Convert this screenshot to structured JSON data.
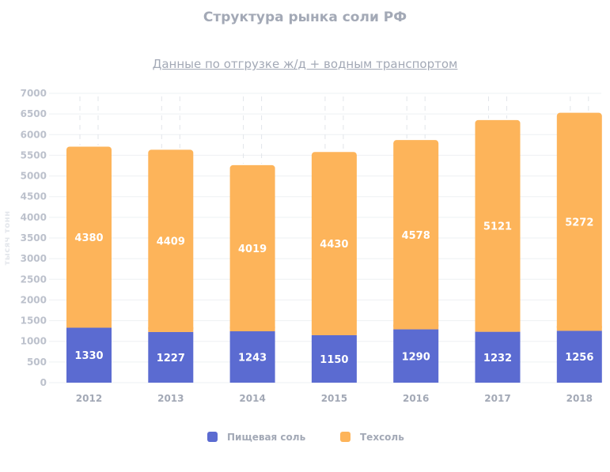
{
  "chart_data": {
    "type": "bar",
    "stacked": true,
    "title": "Структура рынка соли РФ",
    "subtitle": "Данные по отгрузке  ж/д + водным транспортом",
    "ylabel": "тысяч тонн",
    "xlabel": "",
    "categories": [
      "2012",
      "2013",
      "2014",
      "2015",
      "2016",
      "2017",
      "2018"
    ],
    "series": [
      {
        "name": "Пищевая соль",
        "color": "#5b6bd1",
        "values": [
          1330,
          1227,
          1243,
          1150,
          1290,
          1232,
          1256
        ]
      },
      {
        "name": "Техсоль",
        "color": "#fdb45a",
        "values": [
          4380,
          4409,
          4019,
          4430,
          4578,
          5121,
          5272
        ]
      }
    ],
    "ylim": [
      0,
      7000
    ],
    "yticks": [
      0,
      500,
      1000,
      1500,
      2000,
      2500,
      3000,
      3500,
      4000,
      4500,
      5000,
      5500,
      6000,
      6500,
      7000
    ],
    "grid": true,
    "legend_position": "bottom"
  }
}
